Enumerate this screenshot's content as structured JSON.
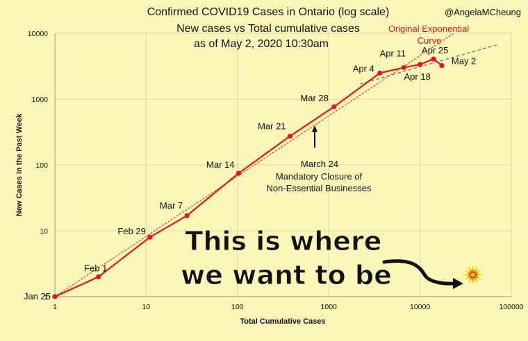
{
  "chart_data": {
    "type": "line",
    "title_lines": [
      "Confirmed COVID19 Cases in Ontario (log scale)",
      "New cases vs Total cumulative cases",
      "as of May 2, 2020 10:30am"
    ],
    "credit": "@AngelaMCheung",
    "xlabel": "Total Cumulative Cases",
    "ylabel": "New Cases in the Past Week",
    "x_scale": "log",
    "y_scale": "log",
    "xlim": [
      1,
      100000
    ],
    "ylim": [
      1,
      10000
    ],
    "x_ticks": [
      "1",
      "10",
      "100",
      "1000",
      "10000",
      "100000"
    ],
    "y_ticks": [
      "1",
      "10",
      "100",
      "1000",
      "10000"
    ],
    "grid": true,
    "series": [
      {
        "color": "#e8141b",
        "points": [
          {
            "label": "Jan 25",
            "x": 1,
            "y": 1
          },
          {
            "label": "Feb 1",
            "x": 3,
            "y": 2
          },
          {
            "label": "Feb 29",
            "x": 11,
            "y": 8
          },
          {
            "label": "Mar 7",
            "x": 28,
            "y": 17
          },
          {
            "label": "Mar 14",
            "x": 103,
            "y": 75
          },
          {
            "label": "Mar 21",
            "x": 377,
            "y": 274
          },
          {
            "label": "Mar 28",
            "x": 1144,
            "y": 767
          },
          {
            "label": "Apr 4",
            "x": 3630,
            "y": 2486
          },
          {
            "label": "Apr 11",
            "x": 6648,
            "y": 3018
          },
          {
            "label": "Apr 18",
            "x": 10010,
            "y": 3362
          },
          {
            "label": "Apr 25",
            "x": 14070,
            "y": 4060
          },
          {
            "label": "May 2",
            "x": 17305,
            "y": 3235
          }
        ]
      }
    ],
    "trendlines": [
      {
        "label_lines": [
          "Original Exponential",
          "Curve"
        ],
        "color": "#e8141b",
        "style": "dotted",
        "from": [
          1,
          1
        ],
        "to": [
          23000,
          9800
        ]
      },
      {
        "color": "#4d6d6a",
        "style": "dashed",
        "from": [
          2200,
          1700
        ],
        "to": [
          70000,
          6700
        ]
      }
    ],
    "annotations": [
      {
        "lines": [
          "March 24",
          "Mandatory Closure of",
          "Non-Essential Businesses"
        ]
      },
      {
        "lines": [
          "This is where",
          "we want to be"
        ],
        "style": "large"
      }
    ],
    "target_marker": {
      "x": 38000,
      "y": 2.15,
      "color": "#e8141b"
    }
  }
}
